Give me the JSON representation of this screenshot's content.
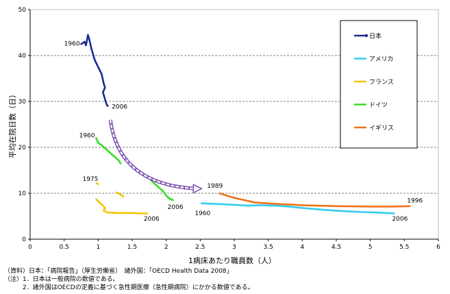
{
  "chart_data": {
    "type": "line",
    "xlabel": "1病床あたり職員数（人）",
    "ylabel": "平均在院日数（日）",
    "xlim": [
      0,
      6
    ],
    "ylim": [
      0,
      50
    ],
    "x_ticks": [
      "0",
      "0.5",
      "1",
      "1.5",
      "2",
      "2.5",
      "3",
      "3.5",
      "4",
      "4.5",
      "5",
      "5.5",
      "6"
    ],
    "y_ticks": [
      "0",
      "10",
      "20",
      "30",
      "40",
      "50"
    ],
    "grid": "horizontal-dashed",
    "legend_position": "top-right",
    "series": [
      {
        "name": "日本",
        "color": "#1a2a8c",
        "points": [
          [
            0.75,
            42.5
          ],
          [
            0.8,
            43
          ],
          [
            0.82,
            42.2
          ],
          [
            0.85,
            44.5
          ],
          [
            0.87,
            43.5
          ],
          [
            0.9,
            41.5
          ],
          [
            0.95,
            39
          ],
          [
            1.0,
            37.5
          ],
          [
            1.05,
            36
          ],
          [
            1.08,
            34
          ],
          [
            1.1,
            33
          ],
          [
            1.07,
            32
          ],
          [
            1.1,
            30.5
          ],
          [
            1.12,
            29.5
          ],
          [
            1.14,
            29
          ]
        ]
      },
      {
        "name": "アメリカ",
        "color": "#33ccf0",
        "points": [
          [
            2.52,
            7.8
          ],
          [
            2.7,
            7.7
          ],
          [
            3.0,
            7.5
          ],
          [
            3.2,
            7.3
          ],
          [
            3.4,
            7.4
          ],
          [
            3.6,
            7.3
          ],
          [
            3.8,
            7.1
          ],
          [
            4.0,
            6.8
          ],
          [
            4.3,
            6.4
          ],
          [
            4.6,
            6.1
          ],
          [
            4.9,
            5.9
          ],
          [
            5.1,
            5.8
          ],
          [
            5.35,
            5.6
          ]
        ]
      },
      {
        "name": "フランス",
        "color": "#f5c400",
        "segments": [
          [
            [
              0.98,
              12.2
            ],
            [
              1.0,
              12.0
            ]
          ],
          [
            [
              0.97,
              8.7
            ],
            [
              1.02,
              8.0
            ],
            [
              1.05,
              7.6
            ],
            [
              1.1,
              6.8
            ],
            [
              1.08,
              6.2
            ],
            [
              1.12,
              5.9
            ],
            [
              1.15,
              5.8
            ],
            [
              1.3,
              5.7
            ],
            [
              1.5,
              5.7
            ],
            [
              1.65,
              5.6
            ],
            [
              1.72,
              5.6
            ]
          ],
          [
            [
              1.27,
              10.2
            ],
            [
              1.32,
              9.8
            ],
            [
              1.37,
              9.3
            ]
          ]
        ]
      },
      {
        "name": "ドイツ",
        "color": "#33dd22",
        "segments": [
          [
            [
              0.97,
              22
            ],
            [
              1.0,
              21
            ],
            [
              1.05,
              20.5
            ],
            [
              1.1,
              19.8
            ],
            [
              1.2,
              18.5
            ],
            [
              1.3,
              17.2
            ],
            [
              1.33,
              16.5
            ]
          ],
          [
            [
              1.67,
              14.2
            ],
            [
              1.75,
              13.2
            ],
            [
              1.85,
              11.8
            ],
            [
              1.95,
              10.5
            ],
            [
              2.0,
              9.5
            ],
            [
              2.05,
              8.8
            ],
            [
              2.1,
              8.5
            ]
          ]
        ]
      },
      {
        "name": "イギリス",
        "color": "#f07018",
        "points": [
          [
            2.78,
            10.0
          ],
          [
            3.0,
            9.0
          ],
          [
            3.3,
            8.0
          ],
          [
            3.6,
            7.7
          ],
          [
            4.0,
            7.4
          ],
          [
            4.5,
            7.2
          ],
          [
            5.0,
            7.1
          ],
          [
            5.3,
            7.1
          ],
          [
            5.58,
            7.2
          ]
        ]
      }
    ],
    "annotations": [
      {
        "text": "1960",
        "x": 0.5,
        "y": 42.2
      },
      {
        "text": "2006",
        "x": 1.2,
        "y": 28.4
      },
      {
        "text": "1960",
        "x": 0.72,
        "y": 22.2
      },
      {
        "text": "1975",
        "x": 0.77,
        "y": 12.7
      },
      {
        "text": "2006",
        "x": 1.67,
        "y": 4.0
      },
      {
        "text": "2006",
        "x": 2.02,
        "y": 6.6
      },
      {
        "text": "1989",
        "x": 2.6,
        "y": 11.2
      },
      {
        "text": "1960",
        "x": 2.42,
        "y": 5.2
      },
      {
        "text": "1996",
        "x": 5.54,
        "y": 8.0
      },
      {
        "text": "2006",
        "x": 5.32,
        "y": 4.0
      }
    ],
    "arrow": {
      "from": [
        1.18,
        26
      ],
      "to": [
        2.5,
        11
      ]
    }
  },
  "notes": [
    "（資料）日本：「病院報告」（厚生労働省）　諸外国：「OECD Health Data 2008」",
    "（注）1．日本は一般病院の数値である。",
    "　　　2．諸外国はOECDの定義に基づく急性期医療（急性期病院）にかかる数値である。"
  ]
}
